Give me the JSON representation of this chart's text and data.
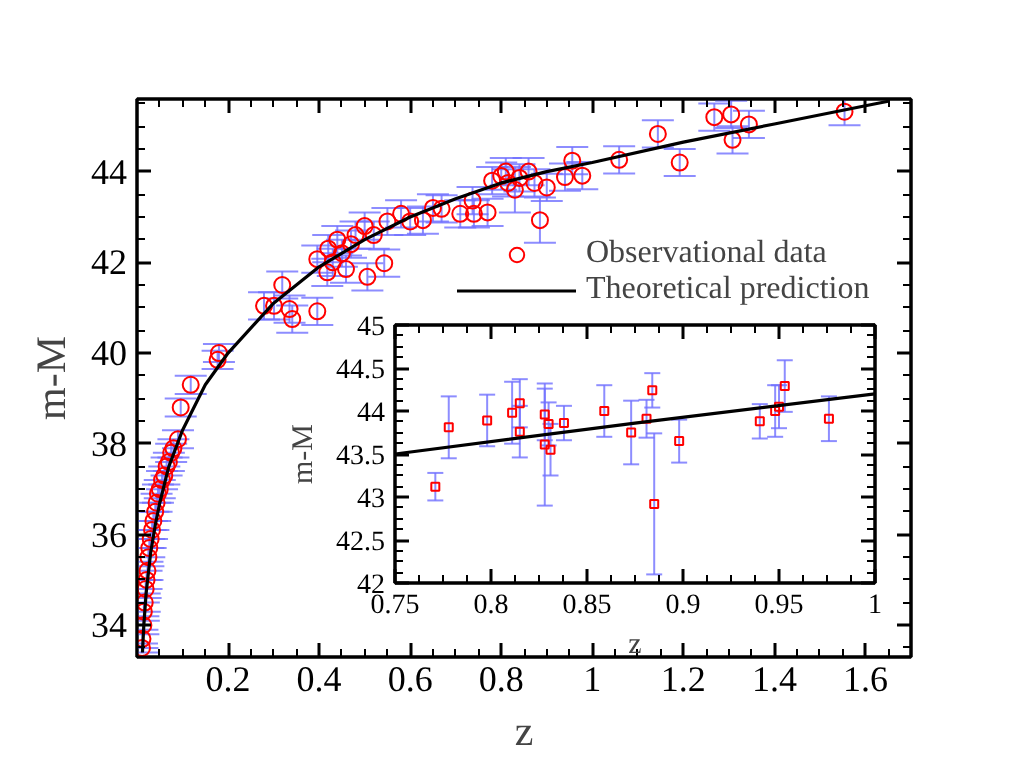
{
  "chart_data": [
    {
      "type": "scatter",
      "xlabel": "z",
      "ylabel": "m-M",
      "xlim": [
        0,
        1.7
      ],
      "ylim": [
        33.3,
        45.6
      ],
      "xticks": [
        0.2,
        0.4,
        0.6,
        0.8,
        1,
        1.2,
        1.4,
        1.6
      ],
      "yticks": [
        34,
        36,
        38,
        40,
        42,
        44
      ],
      "legend": "right",
      "series": [
        {
          "name": "Observational data",
          "marker": "circle",
          "color": "#ff0000",
          "x": [
            0.011,
            0.012,
            0.014,
            0.015,
            0.017,
            0.019,
            0.021,
            0.023,
            0.025,
            0.027,
            0.03,
            0.033,
            0.036,
            0.04,
            0.043,
            0.046,
            0.05,
            0.055,
            0.06,
            0.065,
            0.07,
            0.075,
            0.08,
            0.09,
            0.096,
            0.118,
            0.177,
            0.18,
            0.279,
            0.301,
            0.319,
            0.335,
            0.341,
            0.396,
            0.396,
            0.418,
            0.42,
            0.43,
            0.44,
            0.45,
            0.459,
            0.47,
            0.48,
            0.5,
            0.506,
            0.52,
            0.543,
            0.55,
            0.58,
            0.6,
            0.628,
            0.65,
            0.669,
            0.71,
            0.737,
            0.74,
            0.77,
            0.78,
            0.8,
            0.81,
            0.815,
            0.83,
            0.84,
            0.86,
            0.873,
            0.885,
            0.9,
            0.94,
            0.956,
            0.978,
            1.059,
            1.144,
            1.192,
            1.268,
            1.305,
            1.308,
            1.344,
            1.554
          ],
          "values": [
            33.5,
            33.7,
            34.0,
            34.3,
            34.5,
            34.8,
            35.0,
            35.2,
            35.5,
            35.7,
            35.9,
            36.1,
            36.3,
            36.5,
            36.7,
            36.9,
            37.0,
            37.2,
            37.3,
            37.5,
            37.6,
            37.8,
            37.9,
            38.1,
            38.8,
            39.3,
            39.85,
            40.0,
            41.04,
            41.04,
            41.5,
            40.97,
            40.75,
            40.92,
            42.07,
            41.78,
            42.3,
            42.0,
            42.5,
            42.2,
            41.85,
            42.4,
            42.6,
            42.8,
            41.68,
            42.6,
            41.98,
            42.9,
            43.07,
            42.9,
            42.93,
            43.2,
            43.18,
            43.07,
            43.36,
            43.07,
            43.1,
            43.8,
            43.9,
            44.0,
            43.75,
            43.6,
            43.86,
            44.0,
            43.75,
            42.93,
            43.65,
            43.88,
            44.24,
            43.91,
            44.26,
            44.83,
            44.2,
            45.2,
            45.26,
            44.7,
            45.04,
            45.32
          ],
          "errors": [
            0.1,
            0.2,
            0.2,
            0.2,
            0.2,
            0.2,
            0.2,
            0.2,
            0.2,
            0.2,
            0.2,
            0.2,
            0.2,
            0.2,
            0.2,
            0.2,
            0.2,
            0.2,
            0.2,
            0.2,
            0.2,
            0.2,
            0.2,
            0.2,
            0.2,
            0.2,
            0.2,
            0.2,
            0.3,
            0.3,
            0.3,
            0.3,
            0.3,
            0.3,
            0.3,
            0.3,
            0.3,
            0.3,
            0.3,
            0.3,
            0.3,
            0.3,
            0.3,
            0.3,
            0.3,
            0.3,
            0.3,
            0.3,
            0.3,
            0.3,
            0.3,
            0.3,
            0.3,
            0.3,
            0.3,
            0.3,
            0.3,
            0.3,
            0.3,
            0.3,
            0.3,
            0.5,
            0.3,
            0.3,
            0.3,
            0.5,
            0.3,
            0.3,
            0.3,
            0.3,
            0.3,
            0.3,
            0.3,
            0.3,
            0.3,
            0.3,
            0.3,
            0.3
          ]
        },
        {
          "name": "Theoretical prediction",
          "type": "line",
          "color": "#000000",
          "x": [
            0.012,
            0.015,
            0.02,
            0.03,
            0.04,
            0.05,
            0.07,
            0.1,
            0.15,
            0.2,
            0.3,
            0.4,
            0.5,
            0.6,
            0.7,
            0.8,
            0.9,
            1.0,
            1.2,
            1.4,
            1.6,
            1.65
          ],
          "values": [
            33.4,
            34.0,
            34.7,
            35.6,
            36.2,
            36.7,
            37.5,
            38.3,
            39.3,
            40.0,
            41.1,
            41.9,
            42.5,
            43.0,
            43.4,
            43.75,
            44.0,
            44.2,
            44.65,
            45.05,
            45.45,
            45.55
          ]
        }
      ]
    },
    {
      "type": "scatter",
      "xlabel": "z",
      "ylabel": "m-M",
      "xlim": [
        0.75,
        1
      ],
      "ylim": [
        42,
        45
      ],
      "xticks": [
        0.75,
        0.8,
        0.85,
        0.9,
        0.95,
        1
      ],
      "yticks": [
        42,
        42.5,
        43,
        43.5,
        44,
        44.5,
        45
      ],
      "series": [
        {
          "marker": "square",
          "color": "#ff0000",
          "x": [
            0.771,
            0.778,
            0.798,
            0.811,
            0.815,
            0.815,
            0.828,
            0.828,
            0.83,
            0.831,
            0.838,
            0.859,
            0.873,
            0.881,
            0.884,
            0.885,
            0.898,
            0.94,
            0.948,
            0.95,
            0.953,
            0.976
          ],
          "values": [
            43.12,
            43.81,
            43.89,
            43.98,
            44.09,
            43.76,
            43.96,
            43.61,
            43.85,
            43.55,
            43.86,
            44.0,
            43.75,
            43.91,
            44.24,
            42.92,
            43.65,
            43.88,
            44.0,
            44.05,
            44.29,
            43.91
          ],
          "errors": [
            0.16,
            0.36,
            0.3,
            0.36,
            0.28,
            0.3,
            0.3,
            0.71,
            0.25,
            0.3,
            0.2,
            0.3,
            0.37,
            0.22,
            0.2,
            0.82,
            0.25,
            0.2,
            0.3,
            0.25,
            0.3,
            0.26
          ]
        },
        {
          "type": "line",
          "color": "#000000",
          "x": [
            0.75,
            0.875,
            1.0
          ],
          "values": [
            43.5,
            43.86,
            44.2
          ]
        }
      ]
    }
  ]
}
